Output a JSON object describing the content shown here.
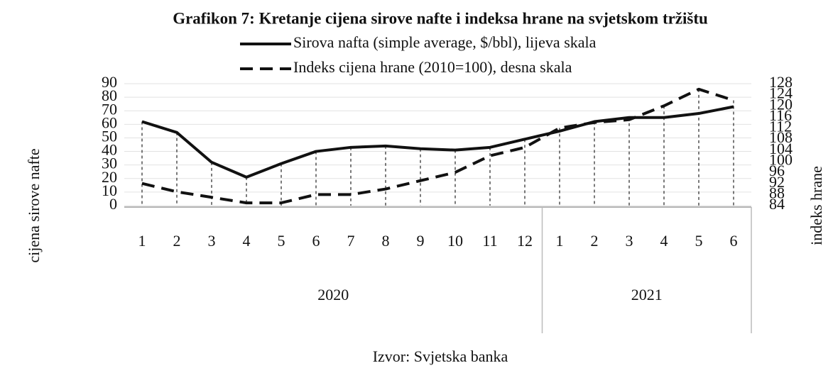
{
  "chart_data": {
    "type": "line",
    "title": "Grafikon 7: Kretanje cijena sirove nafte i indeksa hrane na svjetskom tržištu",
    "categories": [
      "1",
      "2",
      "3",
      "4",
      "5",
      "6",
      "7",
      "8",
      "9",
      "10",
      "11",
      "12",
      "1",
      "2",
      "3",
      "4",
      "5",
      "6"
    ],
    "groups": [
      "2020",
      "2021"
    ],
    "series": [
      {
        "name": "Sirova nafta (simple average, $/bbl), lijeva skala",
        "color": "#111111",
        "style": "solid",
        "axis": "y",
        "values": [
          62,
          54,
          32,
          21,
          31,
          40,
          43,
          44,
          42,
          41,
          43,
          49,
          55,
          62,
          65,
          65,
          68,
          73
        ]
      },
      {
        "name": "Indeks cijena hrane (2010=100), desna skala",
        "color": "#111111",
        "style": "dashed",
        "axis": "y2",
        "values": [
          92,
          89,
          87,
          85,
          85,
          88,
          88,
          90,
          93,
          96,
          102,
          105,
          112,
          114,
          115,
          120,
          126,
          122
        ]
      }
    ],
    "ylabel": "cijena sirove nafte",
    "y2label": "indeks hrane",
    "ylim": [
      0,
      90
    ],
    "yticks": [
      0,
      10,
      20,
      30,
      40,
      50,
      60,
      70,
      80,
      90
    ],
    "y2lim": [
      84,
      128
    ],
    "y2ticks": [
      84,
      88,
      92,
      96,
      100,
      104,
      108,
      112,
      116,
      120,
      124,
      128
    ],
    "grid": true,
    "source": "Izvor: Svjetska banka"
  }
}
